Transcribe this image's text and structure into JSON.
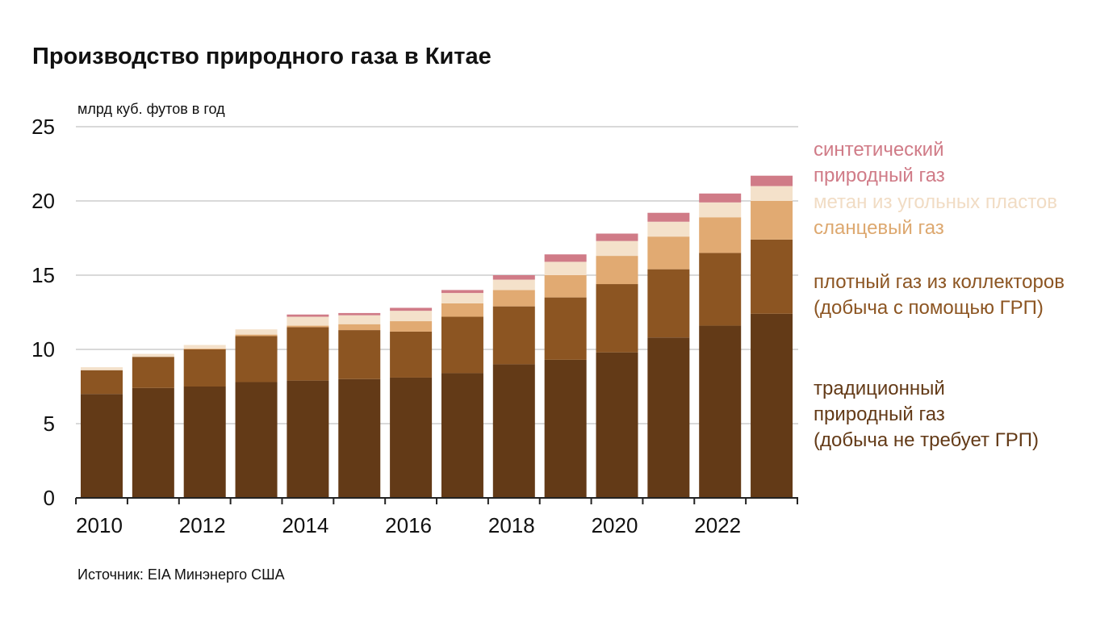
{
  "title": "Производство природного газа в Китае",
  "unit_label": "млрд куб. футов в год",
  "source": "Источник: EIA Минэнерго США",
  "colors": {
    "conventional": "#633a17",
    "tight": "#8c5522",
    "shale": "#e1aa72",
    "cbm": "#f4e1ca",
    "synthetic": "#d07b87",
    "grid": "#d9d9d9",
    "axis": "#222222"
  },
  "legend": [
    {
      "key": "synthetic",
      "lines": [
        "синтетический",
        "природный газ"
      ]
    },
    {
      "key": "cbm",
      "lines": [
        "метан из угольных пластов"
      ]
    },
    {
      "key": "shale",
      "lines": [
        "сланцевый газ"
      ]
    },
    {
      "key": "tight",
      "lines": [
        "плотный газ из коллекторов",
        "(добыча с помощью ГРП)"
      ]
    },
    {
      "key": "conventional",
      "lines": [
        "традиционный",
        "природный газ",
        "(добыча не требует ГРП)"
      ]
    }
  ],
  "chart_data": {
    "type": "bar",
    "stacked": true,
    "title": "Производство природного газа в Китае",
    "ylabel": "млрд куб. футов в год",
    "ylim": [
      0,
      25
    ],
    "yticks": [
      0,
      5,
      10,
      15,
      20,
      25
    ],
    "xtick_labels": [
      "2010",
      "2012",
      "2014",
      "2016",
      "2018",
      "2020",
      "2022"
    ],
    "grid": true,
    "legend_position": "right",
    "categories": [
      "2010",
      "2011",
      "2012",
      "2013",
      "2014",
      "2015",
      "2016",
      "2017",
      "2018",
      "2019",
      "2020",
      "2021",
      "2022",
      "2023"
    ],
    "series": [
      {
        "name": "традиционный природный газ (добыча не требует ГРП)",
        "key": "conventional",
        "values": [
          7.0,
          7.4,
          7.5,
          7.8,
          7.9,
          8.0,
          8.1,
          8.4,
          9.0,
          9.3,
          9.8,
          10.8,
          11.6,
          12.4
        ]
      },
      {
        "name": "плотный газ из коллекторов (добыча с помощью ГРП)",
        "key": "tight",
        "values": [
          1.6,
          2.1,
          2.5,
          3.1,
          3.6,
          3.3,
          3.1,
          3.8,
          3.9,
          4.2,
          4.6,
          4.6,
          4.9,
          5.0
        ]
      },
      {
        "name": "сланцевый газ",
        "key": "shale",
        "values": [
          0.0,
          0.0,
          0.05,
          0.1,
          0.1,
          0.4,
          0.7,
          0.9,
          1.1,
          1.5,
          1.9,
          2.2,
          2.4,
          2.6
        ]
      },
      {
        "name": "метан из угольных пластов",
        "key": "cbm",
        "values": [
          0.2,
          0.2,
          0.25,
          0.35,
          0.6,
          0.6,
          0.7,
          0.7,
          0.7,
          0.9,
          1.0,
          1.0,
          1.0,
          1.0
        ]
      },
      {
        "name": "синтетический природный газ",
        "key": "synthetic",
        "values": [
          0.0,
          0.0,
          0.0,
          0.0,
          0.15,
          0.15,
          0.2,
          0.2,
          0.3,
          0.5,
          0.5,
          0.6,
          0.6,
          0.7
        ]
      }
    ]
  }
}
